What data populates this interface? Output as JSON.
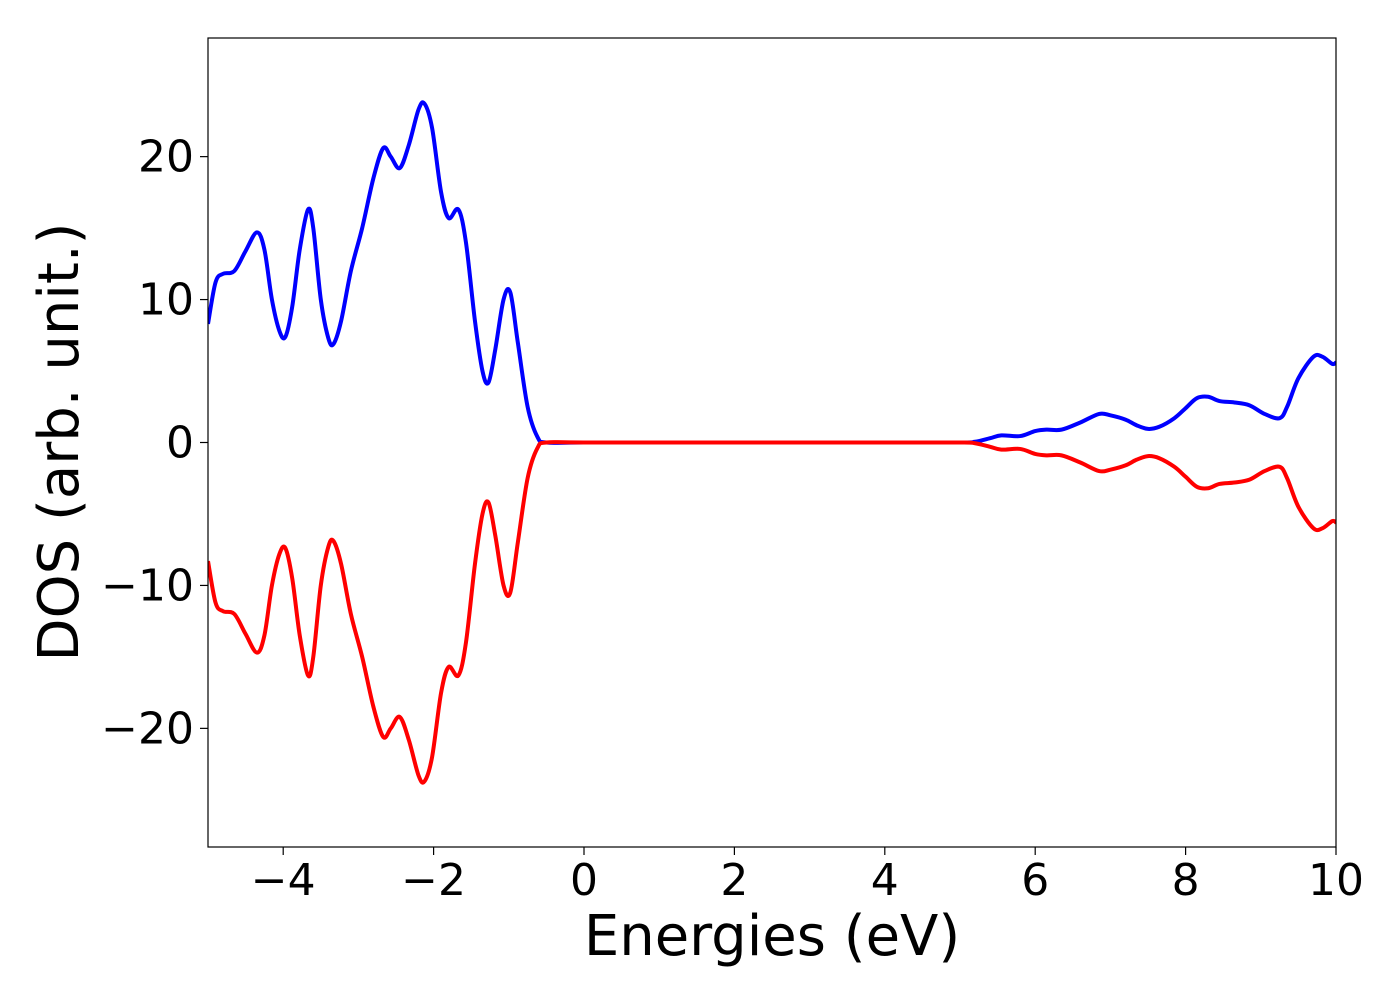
{
  "chart_data": {
    "type": "line",
    "title": "",
    "xlabel": "Energies (eV)",
    "ylabel": "DOS (arb. unit.)",
    "xlim": [
      -5,
      10
    ],
    "ylim": [
      -28.3,
      28.3
    ],
    "grid": false,
    "x_ticks": [
      {
        "value": -4,
        "label": "−4"
      },
      {
        "value": -2,
        "label": "−2"
      },
      {
        "value": 0,
        "label": "0"
      },
      {
        "value": 2,
        "label": "2"
      },
      {
        "value": 4,
        "label": "4"
      },
      {
        "value": 6,
        "label": "6"
      },
      {
        "value": 8,
        "label": "8"
      },
      {
        "value": 10,
        "label": "10"
      }
    ],
    "y_ticks": [
      {
        "value": -20,
        "label": "−20"
      },
      {
        "value": -10,
        "label": "−10"
      },
      {
        "value": 0,
        "label": "0"
      },
      {
        "value": 10,
        "label": "10"
      },
      {
        "value": 20,
        "label": "20"
      }
    ],
    "series": [
      {
        "color": "#0000ff",
        "points": [
          [
            -5.0,
            8.3
          ],
          [
            -4.9,
            11.2
          ],
          [
            -4.8,
            11.8
          ],
          [
            -4.65,
            12.0
          ],
          [
            -4.5,
            13.4
          ],
          [
            -4.35,
            14.7
          ],
          [
            -4.25,
            13.5
          ],
          [
            -4.15,
            10.0
          ],
          [
            -4.05,
            7.8
          ],
          [
            -3.97,
            7.4
          ],
          [
            -3.88,
            9.5
          ],
          [
            -3.78,
            13.5
          ],
          [
            -3.67,
            16.3
          ],
          [
            -3.6,
            15.0
          ],
          [
            -3.5,
            10.0
          ],
          [
            -3.4,
            7.3
          ],
          [
            -3.33,
            6.9
          ],
          [
            -3.23,
            8.5
          ],
          [
            -3.1,
            12.0
          ],
          [
            -2.95,
            15.0
          ],
          [
            -2.8,
            18.5
          ],
          [
            -2.67,
            20.6
          ],
          [
            -2.57,
            20.0
          ],
          [
            -2.45,
            19.2
          ],
          [
            -2.33,
            20.8
          ],
          [
            -2.2,
            23.3
          ],
          [
            -2.12,
            23.7
          ],
          [
            -2.02,
            22.0
          ],
          [
            -1.9,
            17.5
          ],
          [
            -1.8,
            15.7
          ],
          [
            -1.67,
            16.3
          ],
          [
            -1.57,
            14.0
          ],
          [
            -1.45,
            8.5
          ],
          [
            -1.35,
            5.0
          ],
          [
            -1.27,
            4.2
          ],
          [
            -1.18,
            6.5
          ],
          [
            -1.07,
            10.0
          ],
          [
            -0.98,
            10.5
          ],
          [
            -0.88,
            7.0
          ],
          [
            -0.75,
            2.5
          ],
          [
            -0.62,
            0.4
          ],
          [
            -0.5,
            0.0
          ],
          [
            0.0,
            0.0
          ],
          [
            2.0,
            0.0
          ],
          [
            4.0,
            0.0
          ],
          [
            5.0,
            0.0
          ],
          [
            5.2,
            0.05
          ],
          [
            5.4,
            0.3
          ],
          [
            5.55,
            0.5
          ],
          [
            5.8,
            0.45
          ],
          [
            6.0,
            0.8
          ],
          [
            6.15,
            0.9
          ],
          [
            6.35,
            0.9
          ],
          [
            6.6,
            1.4
          ],
          [
            6.85,
            2.0
          ],
          [
            7.0,
            1.9
          ],
          [
            7.2,
            1.6
          ],
          [
            7.35,
            1.2
          ],
          [
            7.5,
            0.95
          ],
          [
            7.65,
            1.1
          ],
          [
            7.85,
            1.7
          ],
          [
            8.0,
            2.4
          ],
          [
            8.15,
            3.1
          ],
          [
            8.3,
            3.2
          ],
          [
            8.45,
            2.9
          ],
          [
            8.65,
            2.8
          ],
          [
            8.85,
            2.6
          ],
          [
            9.05,
            2.0
          ],
          [
            9.25,
            1.7
          ],
          [
            9.35,
            2.5
          ],
          [
            9.5,
            4.5
          ],
          [
            9.7,
            6.0
          ],
          [
            9.82,
            6.0
          ],
          [
            9.95,
            5.5
          ],
          [
            10.0,
            5.6
          ]
        ]
      },
      {
        "color": "#ff0000",
        "points": [
          [
            -5.0,
            -8.3
          ],
          [
            -4.9,
            -11.2
          ],
          [
            -4.8,
            -11.8
          ],
          [
            -4.65,
            -12.0
          ],
          [
            -4.5,
            -13.4
          ],
          [
            -4.35,
            -14.7
          ],
          [
            -4.25,
            -13.5
          ],
          [
            -4.15,
            -10.0
          ],
          [
            -4.05,
            -7.8
          ],
          [
            -3.97,
            -7.4
          ],
          [
            -3.88,
            -9.5
          ],
          [
            -3.78,
            -13.5
          ],
          [
            -3.67,
            -16.3
          ],
          [
            -3.6,
            -15.0
          ],
          [
            -3.5,
            -10.0
          ],
          [
            -3.4,
            -7.3
          ],
          [
            -3.33,
            -6.9
          ],
          [
            -3.23,
            -8.5
          ],
          [
            -3.1,
            -12.0
          ],
          [
            -2.95,
            -15.0
          ],
          [
            -2.8,
            -18.5
          ],
          [
            -2.67,
            -20.6
          ],
          [
            -2.57,
            -20.0
          ],
          [
            -2.45,
            -19.2
          ],
          [
            -2.33,
            -20.8
          ],
          [
            -2.2,
            -23.3
          ],
          [
            -2.12,
            -23.7
          ],
          [
            -2.02,
            -22.0
          ],
          [
            -1.9,
            -17.5
          ],
          [
            -1.8,
            -15.7
          ],
          [
            -1.67,
            -16.3
          ],
          [
            -1.57,
            -14.0
          ],
          [
            -1.45,
            -8.5
          ],
          [
            -1.35,
            -5.0
          ],
          [
            -1.27,
            -4.2
          ],
          [
            -1.18,
            -6.5
          ],
          [
            -1.07,
            -10.0
          ],
          [
            -0.98,
            -10.5
          ],
          [
            -0.88,
            -7.0
          ],
          [
            -0.75,
            -2.5
          ],
          [
            -0.62,
            -0.4
          ],
          [
            -0.5,
            0.0
          ],
          [
            0.0,
            0.0
          ],
          [
            2.0,
            0.0
          ],
          [
            4.0,
            0.0
          ],
          [
            5.0,
            0.0
          ],
          [
            5.2,
            -0.05
          ],
          [
            5.4,
            -0.3
          ],
          [
            5.55,
            -0.5
          ],
          [
            5.8,
            -0.45
          ],
          [
            6.0,
            -0.8
          ],
          [
            6.15,
            -0.9
          ],
          [
            6.35,
            -0.9
          ],
          [
            6.6,
            -1.4
          ],
          [
            6.85,
            -2.0
          ],
          [
            7.0,
            -1.9
          ],
          [
            7.2,
            -1.6
          ],
          [
            7.35,
            -1.2
          ],
          [
            7.5,
            -0.95
          ],
          [
            7.65,
            -1.1
          ],
          [
            7.85,
            -1.7
          ],
          [
            8.0,
            -2.4
          ],
          [
            8.15,
            -3.1
          ],
          [
            8.3,
            -3.2
          ],
          [
            8.45,
            -2.9
          ],
          [
            8.65,
            -2.8
          ],
          [
            8.85,
            -2.6
          ],
          [
            9.05,
            -2.0
          ],
          [
            9.25,
            -1.7
          ],
          [
            9.35,
            -2.5
          ],
          [
            9.5,
            -4.5
          ],
          [
            9.7,
            -6.0
          ],
          [
            9.82,
            -6.0
          ],
          [
            9.95,
            -5.5
          ],
          [
            10.0,
            -5.6
          ]
        ]
      }
    ]
  }
}
